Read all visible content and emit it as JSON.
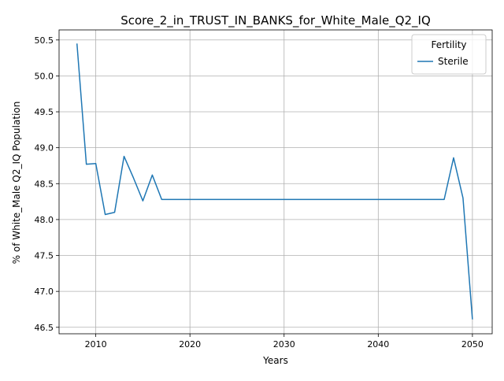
{
  "chart_data": {
    "type": "line",
    "title": "Score_2_in_TRUST_IN_BANKS_for_White_Male_Q2_IQ",
    "xlabel": "Years",
    "ylabel": "% of White_Male Q2_IQ Population",
    "xlim": [
      2006.1,
      2052.1
    ],
    "ylim": [
      46.41,
      50.64
    ],
    "xticks": [
      2010,
      2020,
      2030,
      2040,
      2050
    ],
    "xtick_labels": [
      "2010",
      "2020",
      "2030",
      "2040",
      "2050"
    ],
    "yticks": [
      46.5,
      47.0,
      47.5,
      48.0,
      48.5,
      49.0,
      49.5,
      50.0,
      50.5
    ],
    "ytick_labels": [
      "46.5",
      "47.0",
      "47.5",
      "48.0",
      "48.5",
      "49.0",
      "49.5",
      "50.0",
      "50.5"
    ],
    "grid": true,
    "legend": {
      "title": "Fertility",
      "placement": "top-right"
    },
    "series": [
      {
        "name": "Sterile",
        "color": "#1f77b4",
        "x": [
          2008,
          2009,
          2010,
          2011,
          2012,
          2013,
          2014,
          2015,
          2016,
          2017,
          2018,
          2019,
          2020,
          2021,
          2022,
          2023,
          2024,
          2025,
          2026,
          2027,
          2028,
          2029,
          2030,
          2031,
          2032,
          2033,
          2034,
          2035,
          2036,
          2037,
          2038,
          2039,
          2040,
          2041,
          2042,
          2043,
          2044,
          2045,
          2046,
          2047,
          2048,
          2049,
          2050
        ],
        "y": [
          50.45,
          48.77,
          48.78,
          48.07,
          48.1,
          48.88,
          48.58,
          48.26,
          48.62,
          48.28,
          48.28,
          48.28,
          48.28,
          48.28,
          48.28,
          48.28,
          48.28,
          48.28,
          48.28,
          48.28,
          48.28,
          48.28,
          48.28,
          48.28,
          48.28,
          48.28,
          48.28,
          48.28,
          48.28,
          48.28,
          48.28,
          48.28,
          48.28,
          48.28,
          48.28,
          48.28,
          48.28,
          48.28,
          48.28,
          48.28,
          48.86,
          48.3,
          46.61
        ]
      }
    ]
  }
}
